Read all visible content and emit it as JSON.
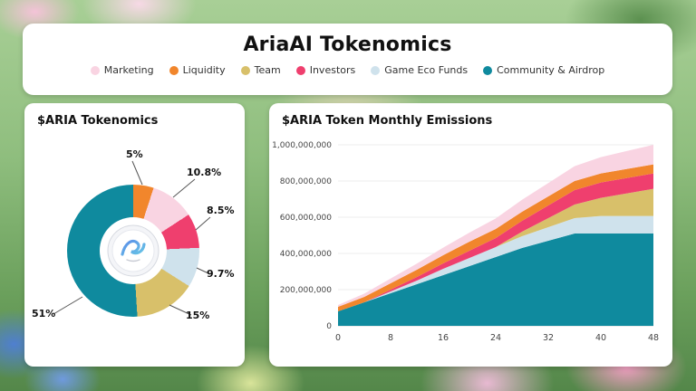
{
  "header": {
    "title": "AriaAI Tokenomics"
  },
  "legend": {
    "items": [
      {
        "label": "Marketing",
        "color": "#f9d4e2"
      },
      {
        "label": "Liquidity",
        "color": "#f1862c"
      },
      {
        "label": "Team",
        "color": "#d8c06a"
      },
      {
        "label": "Investors",
        "color": "#ef3f6e"
      },
      {
        "label": "Game Eco Funds",
        "color": "#cfe2ec"
      },
      {
        "label": "Community & Airdrop",
        "color": "#0f8a9e"
      }
    ]
  },
  "chart_data": [
    {
      "type": "pie",
      "donut": true,
      "title": "$ARIA Tokenomics",
      "labels": [
        "Liquidity",
        "Marketing",
        "Investors",
        "Game Eco Funds",
        "Team",
        "Community & Airdrop"
      ],
      "values": [
        5,
        10.8,
        8.5,
        9.7,
        15,
        51
      ],
      "value_labels": [
        "5%",
        "10.8%",
        "8.5%",
        "9.7%",
        "15%",
        "51%"
      ],
      "colors": [
        "#f1862c",
        "#f9d4e2",
        "#ef3f6e",
        "#cfe2ec",
        "#d8c06a",
        "#0f8a9e"
      ]
    },
    {
      "type": "area",
      "stacked": true,
      "grid": true,
      "title": "$ARIA Token Monthly Emissions",
      "x": [
        0,
        4,
        8,
        12,
        16,
        20,
        24,
        28,
        32,
        36,
        40,
        44,
        48
      ],
      "x_ticks": [
        0,
        8,
        16,
        24,
        32,
        40,
        48
      ],
      "xlim": [
        0,
        48
      ],
      "ylim": [
        0,
        1000000000
      ],
      "y_ticks": [
        0,
        200000000,
        400000000,
        600000000,
        800000000,
        1000000000
      ],
      "y_tick_labels": [
        "0",
        "200,000,000",
        "400,000,000",
        "600,000,000",
        "800,000,000",
        "1,000,000,000"
      ],
      "series": [
        {
          "name": "Community & Airdrop",
          "color": "#0f8a9e",
          "values": [
            80000000,
            130000000,
            180000000,
            230000000,
            280000000,
            330000000,
            380000000,
            430000000,
            470000000,
            510000000,
            510000000,
            510000000,
            510000000
          ]
        },
        {
          "name": "Game Eco Funds",
          "color": "#cfe2ec",
          "values": [
            0,
            0,
            10000000,
            20000000,
            35000000,
            45000000,
            55000000,
            65000000,
            75000000,
            85000000,
            97000000,
            97000000,
            97000000
          ]
        },
        {
          "name": "Team",
          "color": "#d8c06a",
          "values": [
            0,
            0,
            0,
            0,
            0,
            0,
            0,
            25000000,
            50000000,
            75000000,
            100000000,
            125000000,
            150000000
          ]
        },
        {
          "name": "Investors",
          "color": "#ef3f6e",
          "values": [
            0,
            0,
            10000000,
            20000000,
            30000000,
            40000000,
            50000000,
            60000000,
            70000000,
            80000000,
            85000000,
            85000000,
            85000000
          ]
        },
        {
          "name": "Liquidity",
          "color": "#f1862c",
          "values": [
            25000000,
            30000000,
            35000000,
            40000000,
            45000000,
            50000000,
            50000000,
            50000000,
            50000000,
            50000000,
            50000000,
            50000000,
            50000000
          ]
        },
        {
          "name": "Marketing",
          "color": "#f9d4e2",
          "values": [
            10000000,
            18000000,
            26000000,
            34000000,
            42000000,
            50000000,
            58000000,
            66000000,
            74000000,
            82000000,
            90000000,
            99000000,
            108000000
          ]
        }
      ]
    }
  ]
}
